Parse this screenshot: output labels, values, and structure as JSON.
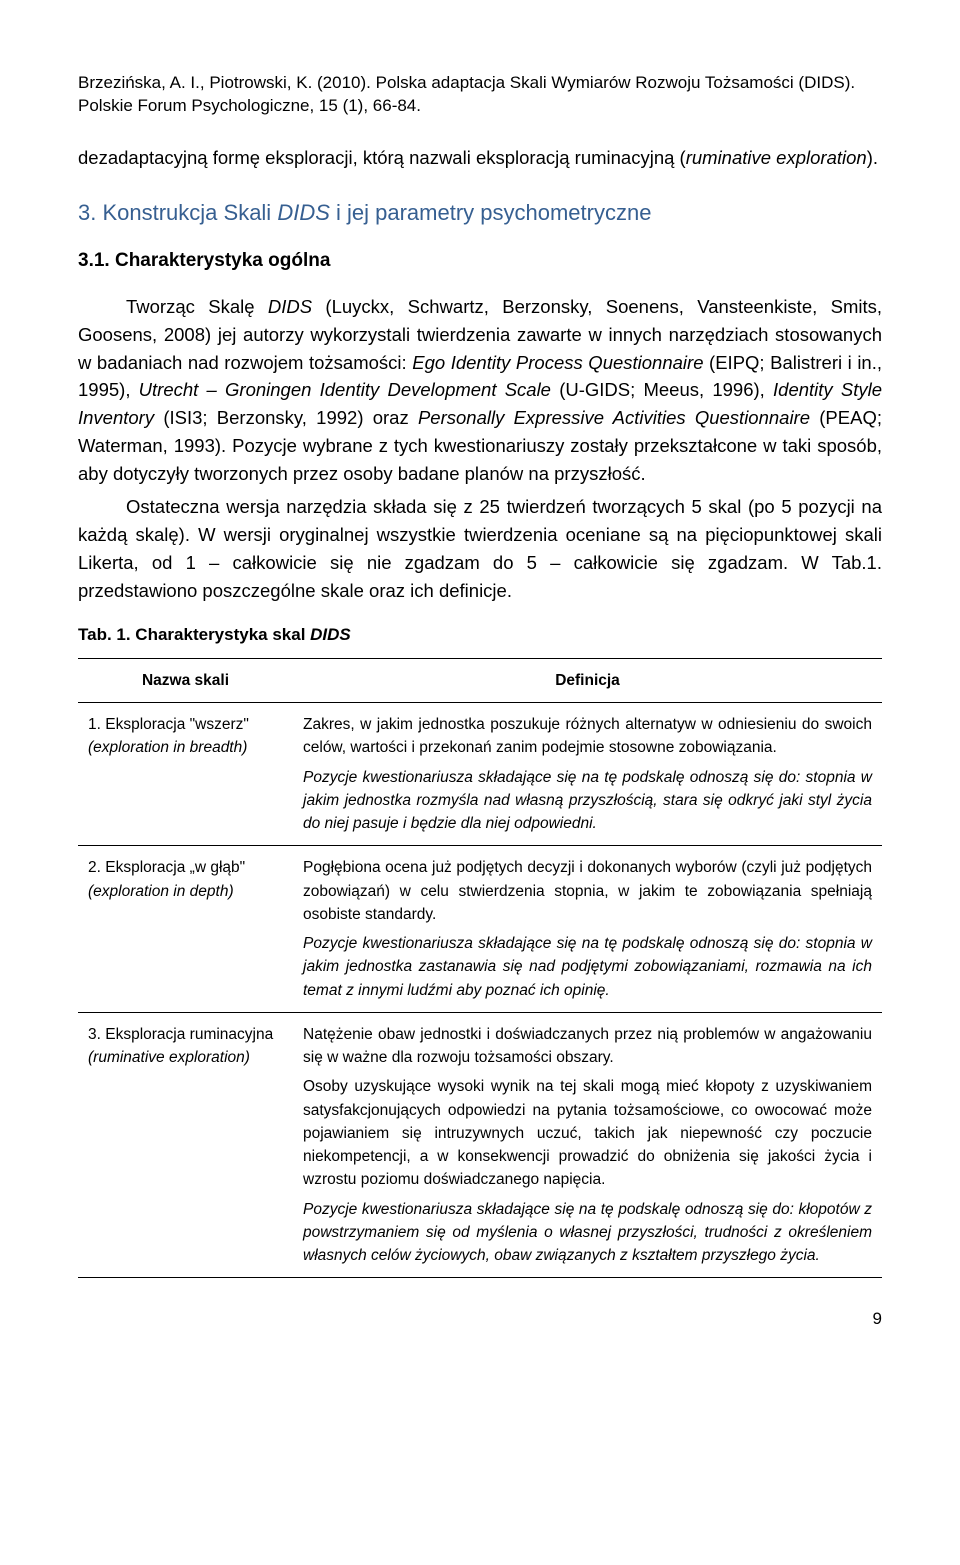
{
  "header": {
    "citation": "Brzezińska, A. I., Piotrowski, K. (2010). Polska adaptacja Skali Wymiarów Rozwoju Tożsamości (DIDS). Polskie Forum Psychologiczne, 15 (1), 66-84."
  },
  "intro": {
    "p1_a": "dezadaptacyjną formę eksploracji, którą nazwali eksploracją ruminacyjną (",
    "p1_b": "ruminative exploration",
    "p1_c": ")."
  },
  "section": {
    "num_text": "3. Konstrukcja Skali ",
    "italic": "DIDS",
    "rest": " i jej parametry psychometryczne"
  },
  "sub": {
    "text": "3.1. Charakterystyka ogólna"
  },
  "body": {
    "p1_a": "Tworząc Skalę ",
    "p1_b": "DIDS",
    "p1_c": " (Luyckx, Schwartz, Berzonsky, Soenens, Vansteenkiste, Smits, Goosens, 2008) jej autorzy wykorzystali twierdzenia zawarte w innych narzędziach stosowanych w badaniach nad rozwojem tożsamości: ",
    "p1_d": "Ego Identity Process Questionnaire",
    "p1_e": " (EIPQ; Balistreri i in., 1995),  ",
    "p1_f": "Utrecht – Groningen Identity Development Scale",
    "p1_g": " (U-GIDS; Meeus, 1996), ",
    "p1_h": "Identity Style Inventory",
    "p1_i": " (ISI3; Berzonsky, 1992) oraz  ",
    "p1_j": "Personally Expressive Activities Questionnaire",
    "p1_k": " (PEAQ; Waterman, 1993). Pozycje wybrane z tych kwestionariuszy zostały przekształcone w taki sposób, aby dotyczyły tworzonych przez osoby badane planów na przyszłość.",
    "p2": "Ostateczna wersja narzędzia składa się z 25 twierdzeń tworzących 5 skal (po 5 pozycji na każdą skalę). W wersji oryginalnej wszystkie twierdzenia oceniane są na pięciopunktowej skali Likerta, od 1 – całkowicie się nie zgadzam do 5 – całkowicie się zgadzam. W Tab.1. przedstawiono poszczególne skale oraz ich definicje."
  },
  "table_caption": {
    "a": "Tab. 1. Charakterystyka skal ",
    "b": "DIDS"
  },
  "table": {
    "col1": "Nazwa skali",
    "col2": "Definicja",
    "rows": [
      {
        "name_a": "1. Eksploracja \"wszerz\"",
        "name_b": "(exploration in breadth)",
        "def_a": "Zakres, w jakim jednostka poszukuje różnych alternatyw w odniesieniu do swoich celów, wartości i przekonań zanim podejmie stosowne zobowiązania.",
        "def_b": "Pozycje kwestionariusza składające się na tę podskalę odnoszą się do: stopnia w jakim jednostka rozmyśla nad własną przyszłością, stara się odkryć jaki styl życia do niej pasuje i będzie dla niej odpowiedni."
      },
      {
        "name_a": "2. Eksploracja „w głąb\"",
        "name_b": "(exploration in depth)",
        "def_a": "Pogłębiona ocena już podjętych decyzji i dokonanych wyborów (czyli już podjętych zobowiązań) w celu stwierdzenia stopnia, w jakim te zobowiązania spełniają osobiste standardy.",
        "def_b": "Pozycje kwestionariusza składające się na tę podskalę odnoszą się do: stopnia w jakim jednostka zastanawia się nad podjętymi zobowiązaniami, rozmawia na ich temat z innymi ludźmi aby poznać ich opinię."
      },
      {
        "name_a": "3. Eksploracja ruminacyjna",
        "name_b": "(ruminative exploration)",
        "def_a": "Natężenie obaw jednostki i doświadczanych przez nią problemów w angażowaniu się w ważne dla rozwoju tożsamości obszary.",
        "def_mid": "Osoby uzyskujące wysoki wynik na tej skali mogą mieć kłopoty z uzyskiwaniem satysfakcjonujących odpowiedzi na pytania tożsamościowe, co owocować może pojawianiem się intruzywnych uczuć, takich jak niepewność czy poczucie niekompetencji, a w konsekwencji prowadzić do obniżenia się jakości życia i wzrostu poziomu doświadczanego napięcia.",
        "def_b": "Pozycje kwestionariusza składające się na tę podskalę odnoszą się do: kłopotów z powstrzymaniem się od myślenia o własnej przyszłości, trudności z określeniem własnych celów życiowych, obaw związanych z kształtem przyszłego życia."
      }
    ]
  },
  "page": "9"
}
